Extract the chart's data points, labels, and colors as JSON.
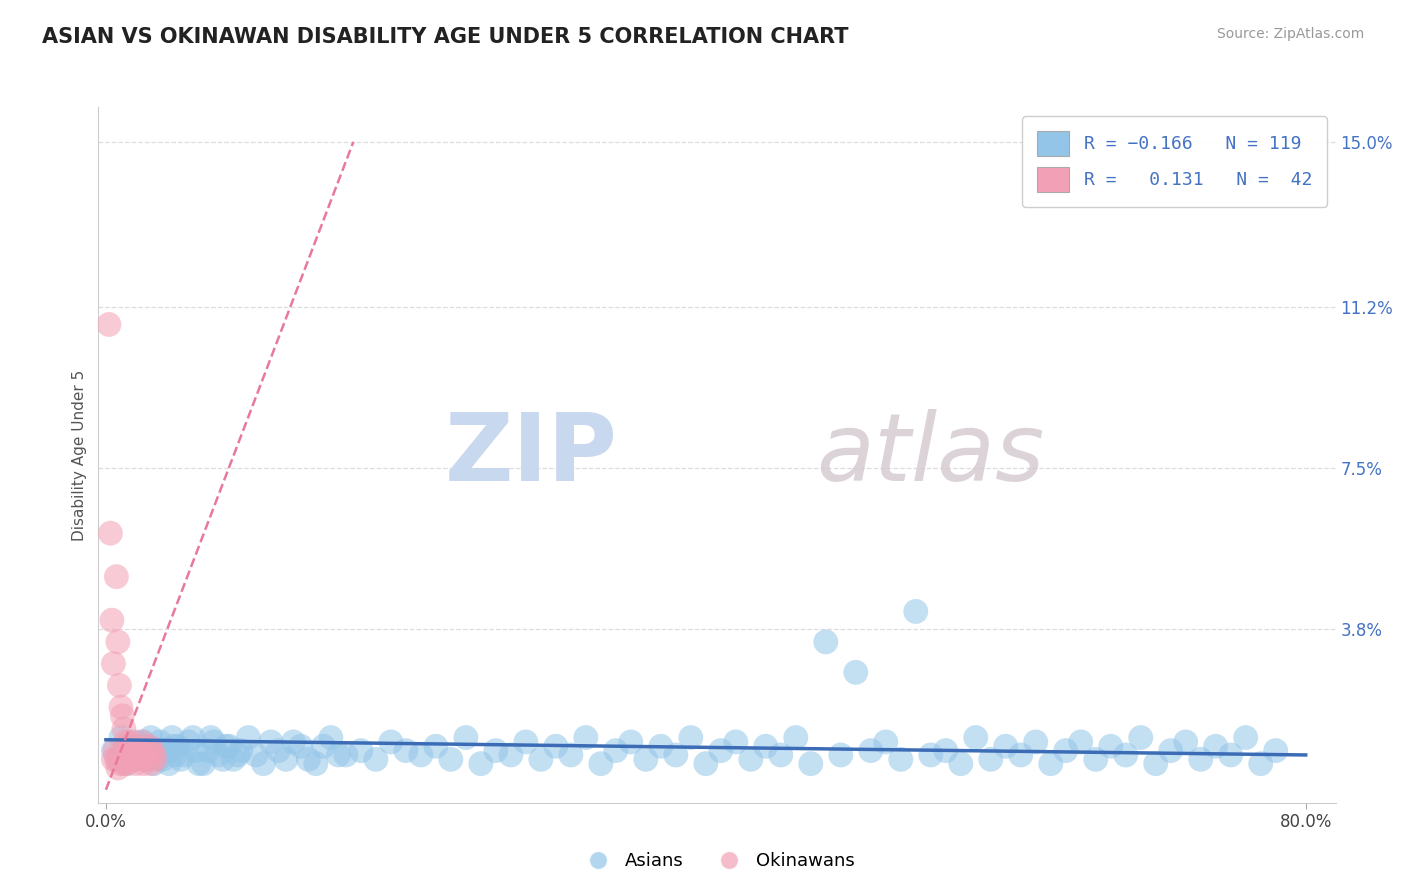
{
  "title": "ASIAN VS OKINAWAN DISABILITY AGE UNDER 5 CORRELATION CHART",
  "source": "Source: ZipAtlas.com",
  "ylabel_label": "Disability Age Under 5",
  "xlim": [
    -0.005,
    0.82
  ],
  "ylim": [
    -0.002,
    0.158
  ],
  "xticks": [
    0.0,
    0.8
  ],
  "xticklabels": [
    "0.0%",
    "80.0%"
  ],
  "yticks": [
    0.0,
    0.038,
    0.075,
    0.112,
    0.15
  ],
  "yticklabels": [
    "",
    "3.8%",
    "7.5%",
    "11.2%",
    "15.0%"
  ],
  "asian_color": "#92C5E8",
  "okinawan_color": "#F2A0B5",
  "asian_R": -0.166,
  "asian_N": 119,
  "okinawan_R": 0.131,
  "okinawan_N": 42,
  "watermark_zip": "ZIP",
  "watermark_atlas": "atlas",
  "background_color": "#FFFFFF",
  "grid_color": "#DDDDDD",
  "legend_label_asian": "Asians",
  "legend_label_okinawan": "Okinawans",
  "asian_line_color": "#3B6CB5",
  "okinawan_line_color": "#E8799A",
  "asian_scatter_x": [
    0.005,
    0.008,
    0.01,
    0.012,
    0.014,
    0.016,
    0.018,
    0.02,
    0.022,
    0.024,
    0.026,
    0.028,
    0.03,
    0.032,
    0.034,
    0.036,
    0.038,
    0.04,
    0.042,
    0.044,
    0.046,
    0.048,
    0.05,
    0.055,
    0.06,
    0.065,
    0.07,
    0.075,
    0.08,
    0.085,
    0.09,
    0.1,
    0.11,
    0.12,
    0.13,
    0.14,
    0.15,
    0.16,
    0.17,
    0.18,
    0.19,
    0.2,
    0.21,
    0.22,
    0.23,
    0.24,
    0.25,
    0.26,
    0.27,
    0.28,
    0.29,
    0.3,
    0.31,
    0.32,
    0.33,
    0.34,
    0.35,
    0.36,
    0.37,
    0.38,
    0.39,
    0.4,
    0.41,
    0.42,
    0.43,
    0.44,
    0.45,
    0.46,
    0.47,
    0.48,
    0.49,
    0.5,
    0.51,
    0.52,
    0.53,
    0.54,
    0.55,
    0.56,
    0.57,
    0.58,
    0.59,
    0.6,
    0.61,
    0.62,
    0.63,
    0.64,
    0.65,
    0.66,
    0.67,
    0.68,
    0.69,
    0.7,
    0.71,
    0.72,
    0.73,
    0.74,
    0.75,
    0.76,
    0.77,
    0.78,
    0.015,
    0.025,
    0.035,
    0.045,
    0.052,
    0.058,
    0.062,
    0.068,
    0.072,
    0.078,
    0.082,
    0.088,
    0.095,
    0.105,
    0.115,
    0.125,
    0.135,
    0.145,
    0.155
  ],
  "asian_scatter_y": [
    0.01,
    0.008,
    0.013,
    0.009,
    0.007,
    0.011,
    0.008,
    0.012,
    0.009,
    0.01,
    0.008,
    0.011,
    0.013,
    0.007,
    0.009,
    0.012,
    0.008,
    0.01,
    0.007,
    0.013,
    0.009,
    0.011,
    0.008,
    0.012,
    0.01,
    0.007,
    0.013,
    0.009,
    0.011,
    0.008,
    0.01,
    0.009,
    0.012,
    0.008,
    0.011,
    0.007,
    0.013,
    0.009,
    0.01,
    0.008,
    0.012,
    0.01,
    0.009,
    0.011,
    0.008,
    0.013,
    0.007,
    0.01,
    0.009,
    0.012,
    0.008,
    0.011,
    0.009,
    0.013,
    0.007,
    0.01,
    0.012,
    0.008,
    0.011,
    0.009,
    0.013,
    0.007,
    0.01,
    0.012,
    0.008,
    0.011,
    0.009,
    0.013,
    0.007,
    0.035,
    0.009,
    0.028,
    0.01,
    0.012,
    0.008,
    0.042,
    0.009,
    0.01,
    0.007,
    0.013,
    0.008,
    0.011,
    0.009,
    0.012,
    0.007,
    0.01,
    0.012,
    0.008,
    0.011,
    0.009,
    0.013,
    0.007,
    0.01,
    0.012,
    0.008,
    0.011,
    0.009,
    0.013,
    0.007,
    0.01,
    0.009,
    0.012,
    0.008,
    0.011,
    0.009,
    0.013,
    0.007,
    0.01,
    0.012,
    0.008,
    0.011,
    0.009,
    0.013,
    0.007,
    0.01,
    0.012,
    0.008,
    0.011,
    0.009
  ],
  "okinawan_scatter_x": [
    0.002,
    0.003,
    0.004,
    0.005,
    0.005,
    0.006,
    0.007,
    0.007,
    0.008,
    0.008,
    0.009,
    0.009,
    0.01,
    0.01,
    0.011,
    0.011,
    0.012,
    0.012,
    0.013,
    0.013,
    0.014,
    0.014,
    0.015,
    0.015,
    0.016,
    0.017,
    0.018,
    0.019,
    0.02,
    0.021,
    0.022,
    0.023,
    0.024,
    0.025,
    0.026,
    0.027,
    0.028,
    0.029,
    0.03,
    0.031,
    0.032,
    0.033
  ],
  "okinawan_scatter_y": [
    0.108,
    0.06,
    0.04,
    0.008,
    0.03,
    0.01,
    0.05,
    0.008,
    0.035,
    0.006,
    0.025,
    0.009,
    0.02,
    0.007,
    0.018,
    0.008,
    0.015,
    0.007,
    0.012,
    0.009,
    0.011,
    0.007,
    0.01,
    0.008,
    0.012,
    0.009,
    0.008,
    0.01,
    0.007,
    0.011,
    0.009,
    0.008,
    0.012,
    0.007,
    0.01,
    0.009,
    0.008,
    0.011,
    0.007,
    0.01,
    0.009,
    0.008
  ]
}
